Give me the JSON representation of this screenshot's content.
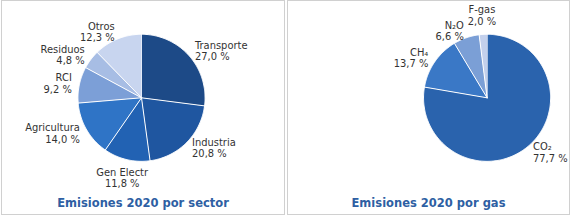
{
  "chart_data": [
    {
      "type": "pie",
      "title": "Emisiones 2020 por sector",
      "categories": [
        "Transporte",
        "Industria",
        "Gen Electr",
        "Agricultura",
        "RCI",
        "Residuos",
        "Otros"
      ],
      "values": [
        27.0,
        20.8,
        11.8,
        14.0,
        9.2,
        4.8,
        12.3
      ],
      "value_labels": [
        "27,0 %",
        "20,8 %",
        "11,8 %",
        "14,0 %",
        "9,2 %",
        "4,8 %",
        "12,3 %"
      ],
      "colors": [
        "#1d4a87",
        "#1f56a0",
        "#2262b3",
        "#2f74c6",
        "#7c9fd7",
        "#a7bde4",
        "#c8d5ef"
      ],
      "data_labels": true
    },
    {
      "type": "pie",
      "title": "Emisiones 2020 por gas",
      "categories": [
        "CO₂",
        "CH₄",
        "N₂O",
        "F-gas"
      ],
      "values": [
        77.7,
        13.7,
        6.6,
        2.0
      ],
      "value_labels": [
        "77,7 %",
        "13,7 %",
        "6,6 %",
        "2,0 %"
      ],
      "colors": [
        "#2a63ad",
        "#3a78c6",
        "#7b9fd6",
        "#c3d0ec"
      ],
      "data_labels": true
    }
  ]
}
